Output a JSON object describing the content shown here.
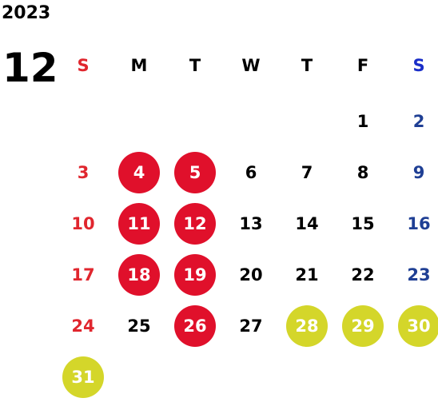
{
  "year": "2023",
  "month": "12",
  "weekdays": [
    "S",
    "M",
    "T",
    "W",
    "T",
    "F",
    "S"
  ],
  "colors": {
    "sunday": "#e0262e",
    "saturday_header": "#1a2ec8",
    "saturday": "#1f3f94",
    "weekday": "#000000",
    "holiday_fill": "#e0102b",
    "closed_fill": "#d4d62a",
    "circle_text": "#ffffff"
  },
  "weeks": [
    [
      null,
      null,
      null,
      null,
      null,
      "1",
      "2"
    ],
    [
      "3",
      "4",
      "5",
      "6",
      "7",
      "8",
      "9"
    ],
    [
      "10",
      "11",
      "12",
      "13",
      "14",
      "15",
      "16"
    ],
    [
      "17",
      "18",
      "19",
      "20",
      "21",
      "22",
      "23"
    ],
    [
      "24",
      "25",
      "26",
      "27",
      "28",
      "29",
      "30"
    ],
    [
      "31",
      null,
      null,
      null,
      null,
      null,
      null
    ]
  ],
  "marked_red": [
    "4",
    "5",
    "11",
    "12",
    "18",
    "19",
    "26"
  ],
  "marked_yellow": [
    "28",
    "29",
    "30",
    "31"
  ]
}
